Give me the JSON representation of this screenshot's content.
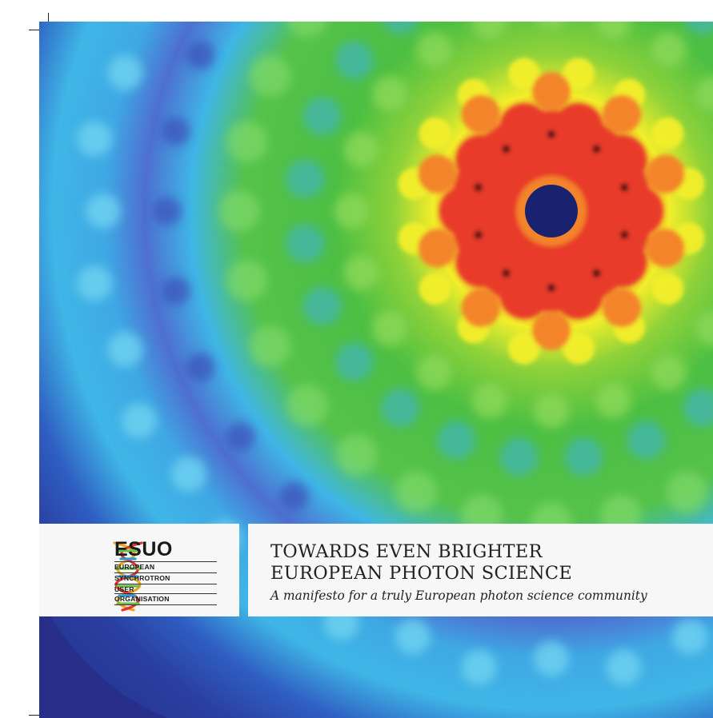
{
  "cover": {
    "title_line1": "TOWARDS EVEN BRIGHTER",
    "title_line2": "EUROPEAN PHOTON SCIENCE",
    "subtitle": "A manifesto for a truly European photon science community"
  },
  "logo": {
    "acronym": "ESUO",
    "lines": [
      "EUROPEAN",
      "SYNCHROTRON",
      "USER",
      "ORGANISATION"
    ],
    "icon": "double-helix-logo-icon"
  },
  "background": {
    "image": "diffraction-pattern-heatmap",
    "colors": {
      "deep_blue": "#2a3fa0",
      "light_blue": "#3fb6e6",
      "green": "#4cbf43",
      "yellow": "#f2ee2a",
      "orange": "#f3842a",
      "red": "#e83a2a",
      "center": "#1a2270"
    }
  }
}
